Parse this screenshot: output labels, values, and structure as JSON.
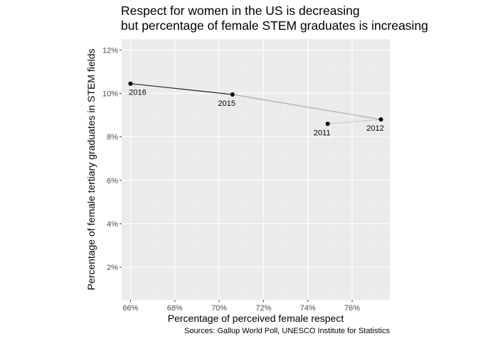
{
  "chart_data": {
    "type": "scatter",
    "title": "Respect for women in the US is decreasing",
    "subtitle": "but percentage of female STEM graduates is increasing",
    "xlabel": "Percentage of perceived female respect",
    "ylabel": "Percentage of female tertiary graduates in STEM fields",
    "caption": "Sources: Gallup World Poll, UNESCO Institute for Statistics",
    "xlim": [
      65.6,
      77.7
    ],
    "ylim": [
      0.5,
      12.5
    ],
    "x_ticks": [
      66,
      68,
      70,
      72,
      74,
      76
    ],
    "x_tick_labels": [
      "66%",
      "68%",
      "70%",
      "72%",
      "74%",
      "76%"
    ],
    "y_ticks": [
      2,
      4,
      6,
      8,
      10,
      12
    ],
    "y_tick_labels": [
      "2%",
      "4%",
      "6%",
      "8%",
      "10%",
      "12%"
    ],
    "grid": true,
    "points": [
      {
        "year": "2011",
        "x": 74.9,
        "y": 8.6
      },
      {
        "year": "2012",
        "x": 77.3,
        "y": 8.8
      },
      {
        "year": "2015",
        "x": 70.6,
        "y": 9.95
      },
      {
        "year": "2016",
        "x": 66.0,
        "y": 10.45
      }
    ],
    "path_colors": [
      "#cccccc",
      "#aaaaaa",
      "#222222"
    ]
  }
}
